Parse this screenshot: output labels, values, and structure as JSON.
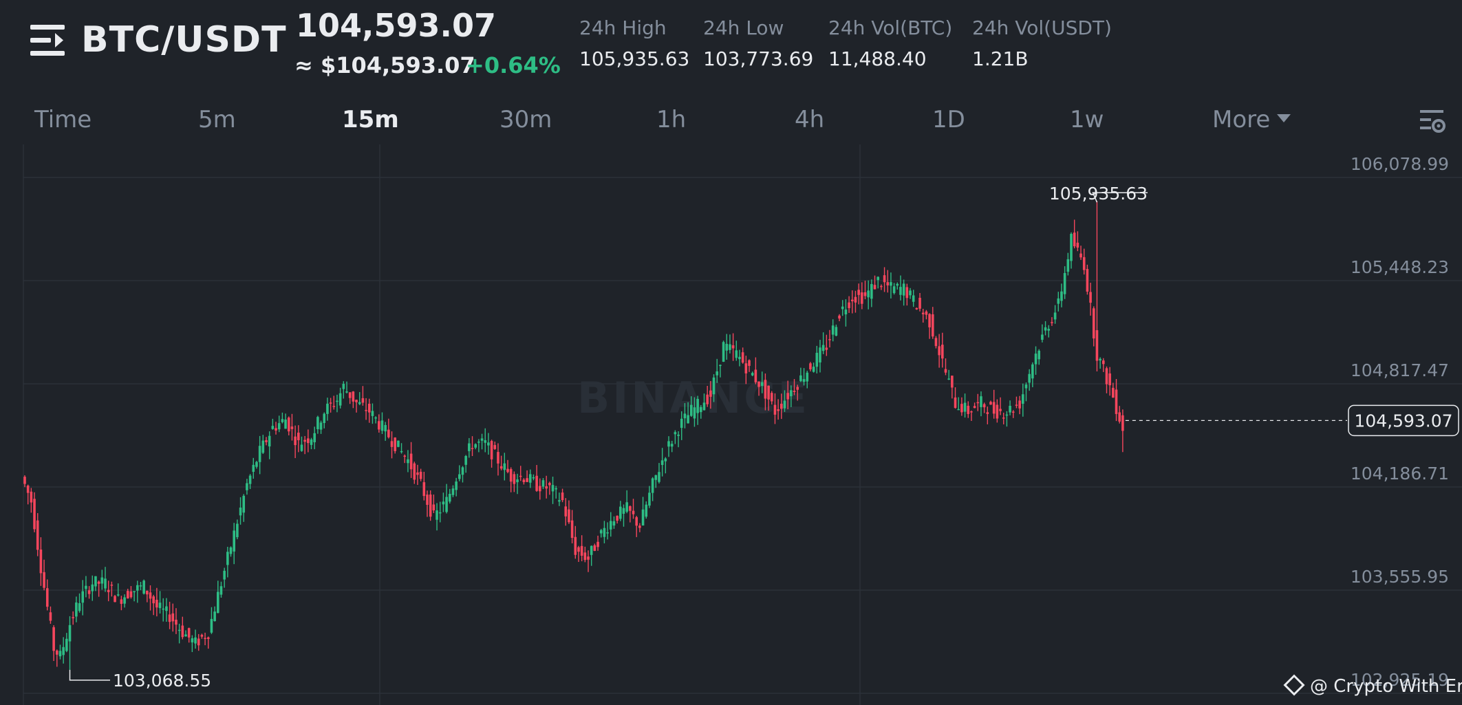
{
  "header": {
    "pair": "BTC/USDT",
    "last_price": "104,593.07",
    "approx_price": "≈ $104,593.07",
    "change": "+0.64%",
    "stats": [
      {
        "label": "24h High",
        "value": "105,935.63"
      },
      {
        "label": "24h Low",
        "value": "103,773.69"
      },
      {
        "label": "24h Vol(BTC)",
        "value": "11,488.40"
      },
      {
        "label": "24h Vol(USDT)",
        "value": "1.21B"
      }
    ]
  },
  "tabs": [
    "Time",
    "5m",
    "15m",
    "30m",
    "1h",
    "4h",
    "1D",
    "1w",
    "More"
  ],
  "active_tab": "15m",
  "chart": {
    "price_levels": [
      "106,078.99",
      "105,448.23",
      "104,817.47",
      "104,186.71",
      "103,555.95",
      "102,925.19"
    ],
    "high_label": "105,935.63",
    "low_label": "103,068.55",
    "current_price_label": "104,593.07",
    "watermark": "BINANCE"
  },
  "chart_data": {
    "type": "candlestick",
    "price_axis_range": [
      102925.19,
      106078.99
    ],
    "grid": true,
    "up_color": "#2ebd85",
    "down_color": "#f6465d",
    "highest": 105935.63,
    "lowest": 103068.55,
    "last": 104593.07
  },
  "credit": "@ Crypto With Erik",
  "colors": {
    "background": "#1f2329",
    "up": "#2ebd85",
    "down": "#f6465d",
    "muted": "#848e9c",
    "grid": "#2b3139"
  },
  "icons": {
    "menu": "menu-arrow-icon",
    "settings": "chart-settings-icon",
    "credit": "binance-diamond-icon"
  }
}
